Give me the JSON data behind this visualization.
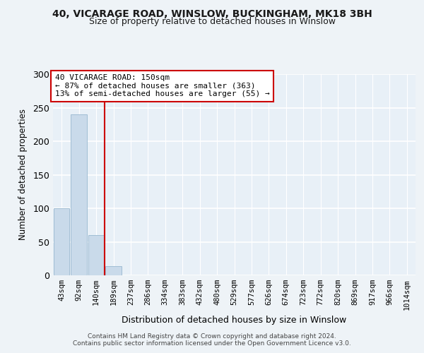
{
  "title1": "40, VICARAGE ROAD, WINSLOW, BUCKINGHAM, MK18 3BH",
  "title2": "Size of property relative to detached houses in Winslow",
  "xlabel": "Distribution of detached houses by size in Winslow",
  "ylabel": "Number of detached properties",
  "bin_labels": [
    "43sqm",
    "92sqm",
    "140sqm",
    "189sqm",
    "237sqm",
    "286sqm",
    "334sqm",
    "383sqm",
    "432sqm",
    "480sqm",
    "529sqm",
    "577sqm",
    "626sqm",
    "674sqm",
    "723sqm",
    "772sqm",
    "820sqm",
    "869sqm",
    "917sqm",
    "966sqm",
    "1014sqm"
  ],
  "bar_values": [
    100,
    240,
    60,
    14,
    0,
    0,
    0,
    0,
    0,
    0,
    0,
    0,
    0,
    0,
    0,
    0,
    0,
    0,
    0,
    0,
    0
  ],
  "bar_color": "#c9daea",
  "bar_edge_color": "#a0bdd4",
  "vline_color": "#cc0000",
  "annotation_text_line1": "40 VICARAGE ROAD: 150sqm",
  "annotation_text_line2": "← 87% of detached houses are smaller (363)",
  "annotation_text_line3": "13% of semi-detached houses are larger (55) →",
  "annotation_box_color": "#cc0000",
  "ylim": [
    0,
    300
  ],
  "yticks": [
    0,
    50,
    100,
    150,
    200,
    250,
    300
  ],
  "footer1": "Contains HM Land Registry data © Crown copyright and database right 2024.",
  "footer2": "Contains public sector information licensed under the Open Government Licence v3.0.",
  "bg_color": "#eef3f7",
  "plot_bg_color": "#e8f0f7"
}
